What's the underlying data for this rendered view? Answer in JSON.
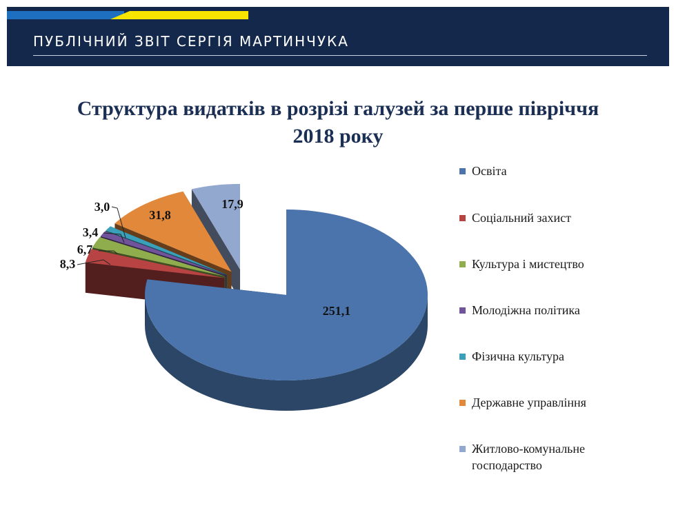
{
  "header": {
    "title": "ПУБЛІЧНИЙ ЗВІТ СЕРГІЯ МАРТИНЧУКА"
  },
  "chart_data": {
    "type": "pie",
    "title_line1": "Структура видатків в розрізі галузей за перше півріччя",
    "title_line2": "2018 року",
    "legend_position": "right",
    "series": [
      {
        "name": "Освіта",
        "value": 251.1,
        "label": "251,1",
        "color": "#4a74ab"
      },
      {
        "name": "Соціальний захист",
        "value": 8.3,
        "label": "8,3",
        "color": "#b74443"
      },
      {
        "name": "Культура і мистецтво",
        "value": 6.7,
        "label": "6,7",
        "color": "#8fad4d"
      },
      {
        "name": "Молодіжна політика",
        "value": 3.4,
        "label": "3,4",
        "color": "#70539a"
      },
      {
        "name": "Фізична культура",
        "value": 3.0,
        "label": "3,0",
        "color": "#3a9fb8"
      },
      {
        "name": "Державне управління",
        "value": 31.8,
        "label": "31,8",
        "color": "#e2883b"
      },
      {
        "name": "Житлово-комунальне господарство",
        "value": 17.9,
        "label": "17,9",
        "color": "#93a8cf"
      }
    ]
  }
}
